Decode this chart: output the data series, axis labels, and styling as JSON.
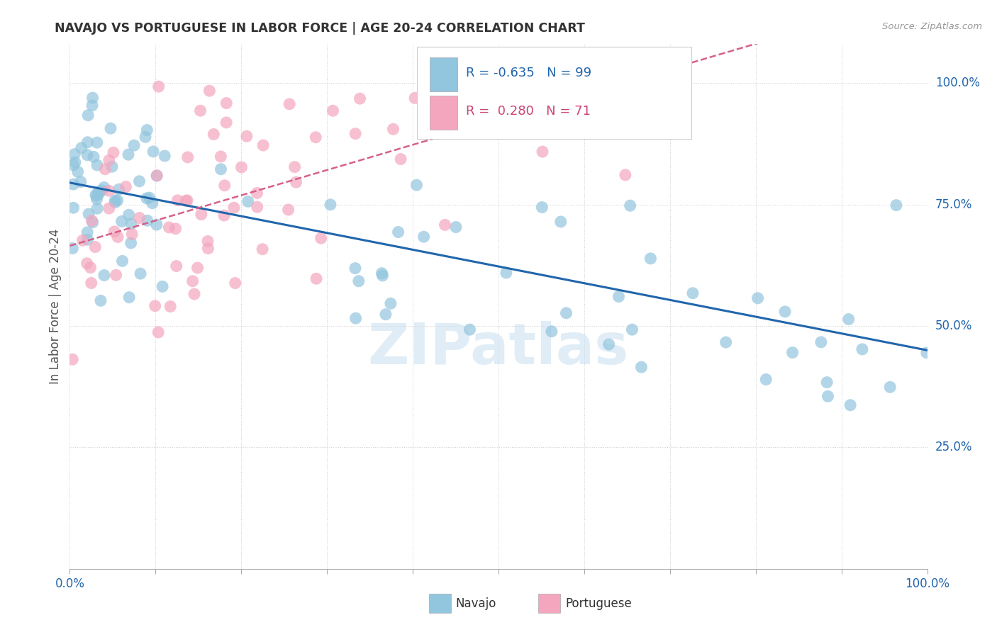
{
  "title": "NAVAJO VS PORTUGUESE IN LABOR FORCE | AGE 20-24 CORRELATION CHART",
  "source": "Source: ZipAtlas.com",
  "ylabel": "In Labor Force | Age 20-24",
  "watermark": "ZIPatlas",
  "legend_navajo_r": "-0.635",
  "legend_navajo_n": "99",
  "legend_portuguese_r": "0.280",
  "legend_portuguese_n": "71",
  "navajo_color": "#92c5de",
  "portuguese_color": "#f4a6be",
  "navajo_line_color": "#2166ac",
  "portuguese_line_color": "#d6608a",
  "background_color": "#ffffff",
  "grid_color": "#cccccc",
  "ytick_positions": [
    0.25,
    0.5,
    0.75,
    1.0
  ],
  "ytick_labels": [
    "25.0%",
    "50.0%",
    "75.0%",
    "100.0%"
  ],
  "navajo_intercept": 0.795,
  "navajo_slope": -0.345,
  "portuguese_intercept": 0.665,
  "portuguese_slope": 0.52
}
